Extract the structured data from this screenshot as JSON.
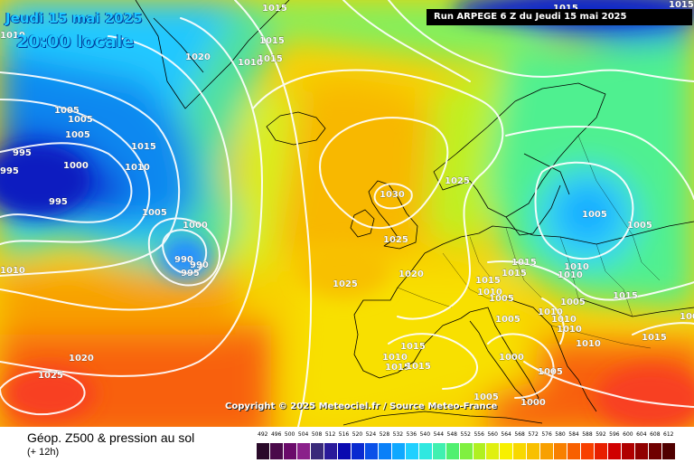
{
  "header": {
    "date": "Jeudi 15 mai 2025",
    "time": "20:00 locale",
    "run": "Run ARPEGE 6 Z du Jeudi 15 mai 2025"
  },
  "copyright": "Copyright © 2025 Meteociel.fr / Source Meteo-France",
  "legend": {
    "title": "Géop. Z500 & pression au sol",
    "subtitle": "(+ 12h)",
    "scale_values": [
      "492",
      "496",
      "500",
      "504",
      "508",
      "512",
      "516",
      "520",
      "524",
      "528",
      "532",
      "536",
      "540",
      "544",
      "548",
      "552",
      "556",
      "560",
      "564",
      "568",
      "572",
      "576",
      "580",
      "584",
      "588",
      "592",
      "596",
      "600",
      "604",
      "608",
      "612"
    ],
    "scale_colors": [
      "#2a0a2a",
      "#4a0a4a",
      "#6a0a6a",
      "#8a208a",
      "#3a2a7a",
      "#2a1a9a",
      "#0a0ab0",
      "#0a2ad0",
      "#0a50e8",
      "#0a80f8",
      "#10a8ff",
      "#20d0ff",
      "#30e8e0",
      "#40f0b0",
      "#50f070",
      "#80f040",
      "#b0f020",
      "#e0f010",
      "#f8f000",
      "#f8d800",
      "#f8c000",
      "#f8a000",
      "#f88000",
      "#f86000",
      "#f84000",
      "#e82000",
      "#d00000",
      "#b00000",
      "#900000",
      "#700000",
      "#500000"
    ]
  },
  "isobar_labels": [
    "1015",
    "1015",
    "1015",
    "1010",
    "1015",
    "1020",
    "1010",
    "1015",
    "1005",
    "1005",
    "1005",
    "1015",
    "995",
    "1000",
    "1010",
    "995",
    "1005",
    "1000",
    "990",
    "995",
    "990",
    "995",
    "1010",
    "1020",
    "1025",
    "1030",
    "1025",
    "1025",
    "1020",
    "1015",
    "1015",
    "1010",
    "1010",
    "1005",
    "1015",
    "1005",
    "1010",
    "1005",
    "1005",
    "1005",
    "1010",
    "1005",
    "1010",
    "1010",
    "1010",
    "1015",
    "1015",
    "1015",
    "1000",
    "1005",
    "1000",
    "1005",
    "1010",
    "1015",
    "1015",
    "1025"
  ]
}
